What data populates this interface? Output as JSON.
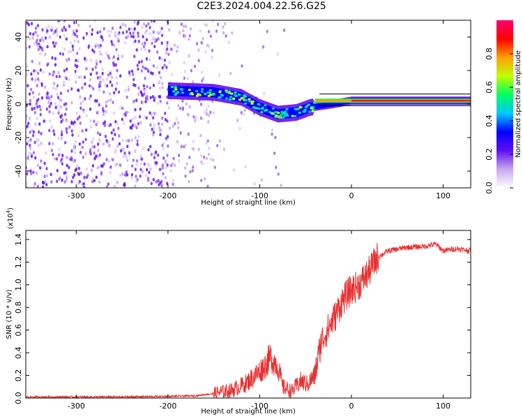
{
  "title": "C2E3.2024.004.22.56.G25",
  "chart_data": [
    {
      "type": "heatmap",
      "name": "spectrogram",
      "xlabel": "Height of straight line (km)",
      "ylabel": "Frequency (Hz)",
      "xlim": [
        -355,
        130
      ],
      "ylim": [
        -50,
        50
      ],
      "xticks": [
        -300,
        -200,
        -100,
        0,
        100
      ],
      "yticks": [
        -40,
        -20,
        0,
        20,
        40
      ],
      "grid": false,
      "colorbar": {
        "label": "Normalized spectral amplitude",
        "range": [
          0,
          1
        ],
        "ticks": [
          0.0,
          0.2,
          0.4,
          0.6,
          0.8
        ],
        "tick_labels": [
          "0.0",
          "0.2",
          "0.4",
          "0.6",
          "0.8"
        ],
        "colors": [
          "#ffffff",
          "#c8a8f0",
          "#6010f0",
          "#0000ff",
          "#00c8ff",
          "#00ff60",
          "#c0ff00",
          "#ffa000",
          "#ff0000",
          "#ff0070"
        ]
      },
      "signal_trace": [
        {
          "x": -200,
          "y": 8
        },
        {
          "x": -150,
          "y": 7
        },
        {
          "x": -120,
          "y": 4
        },
        {
          "x": -100,
          "y": -2
        },
        {
          "x": -80,
          "y": -6
        },
        {
          "x": -60,
          "y": -5
        },
        {
          "x": -45,
          "y": -2
        },
        {
          "x": -20,
          "y": 0
        },
        {
          "x": 0,
          "y": 2
        },
        {
          "x": 50,
          "y": 2
        },
        {
          "x": 100,
          "y": 2
        },
        {
          "x": 130,
          "y": 2
        }
      ]
    },
    {
      "type": "line",
      "name": "snr",
      "xlabel": "Height of straight line (km)",
      "ylabel": "SNR (10 * v/v)",
      "y_multiplier_label": "(x10",
      "y_multiplier_exp": "4",
      "xlim": [
        -355,
        130
      ],
      "ylim": [
        0,
        1.48
      ],
      "xticks": [
        -300,
        -200,
        -100,
        0,
        100
      ],
      "yticks": [
        0.0,
        0.2,
        0.4,
        0.6,
        0.8,
        1.0,
        1.2,
        1.4
      ],
      "ytick_labels": [
        "0.0",
        "0.2",
        "0.4",
        "0.6",
        "0.8",
        "1.0",
        "1.2",
        "1.4"
      ],
      "grid": false,
      "color": "#e83030",
      "points": [
        {
          "x": -355,
          "y": 0.01
        },
        {
          "x": -300,
          "y": 0.01
        },
        {
          "x": -250,
          "y": 0.01
        },
        {
          "x": -200,
          "y": 0.015
        },
        {
          "x": -170,
          "y": 0.02
        },
        {
          "x": -150,
          "y": 0.04
        },
        {
          "x": -130,
          "y": 0.07
        },
        {
          "x": -115,
          "y": 0.13
        },
        {
          "x": -105,
          "y": 0.2
        },
        {
          "x": -95,
          "y": 0.28
        },
        {
          "x": -88,
          "y": 0.36
        },
        {
          "x": -80,
          "y": 0.28
        },
        {
          "x": -75,
          "y": 0.1
        },
        {
          "x": -65,
          "y": 0.06
        },
        {
          "x": -55,
          "y": 0.15
        },
        {
          "x": -48,
          "y": 0.12
        },
        {
          "x": -40,
          "y": 0.2
        },
        {
          "x": -33,
          "y": 0.5
        },
        {
          "x": -25,
          "y": 0.62
        },
        {
          "x": -18,
          "y": 0.72
        },
        {
          "x": -10,
          "y": 0.86
        },
        {
          "x": -2,
          "y": 0.94
        },
        {
          "x": 8,
          "y": 1.0
        },
        {
          "x": 18,
          "y": 1.1
        },
        {
          "x": 28,
          "y": 1.24
        },
        {
          "x": 40,
          "y": 1.3
        },
        {
          "x": 60,
          "y": 1.33
        },
        {
          "x": 80,
          "y": 1.34
        },
        {
          "x": 92,
          "y": 1.36
        },
        {
          "x": 100,
          "y": 1.3
        },
        {
          "x": 115,
          "y": 1.32
        },
        {
          "x": 130,
          "y": 1.3
        }
      ]
    }
  ]
}
